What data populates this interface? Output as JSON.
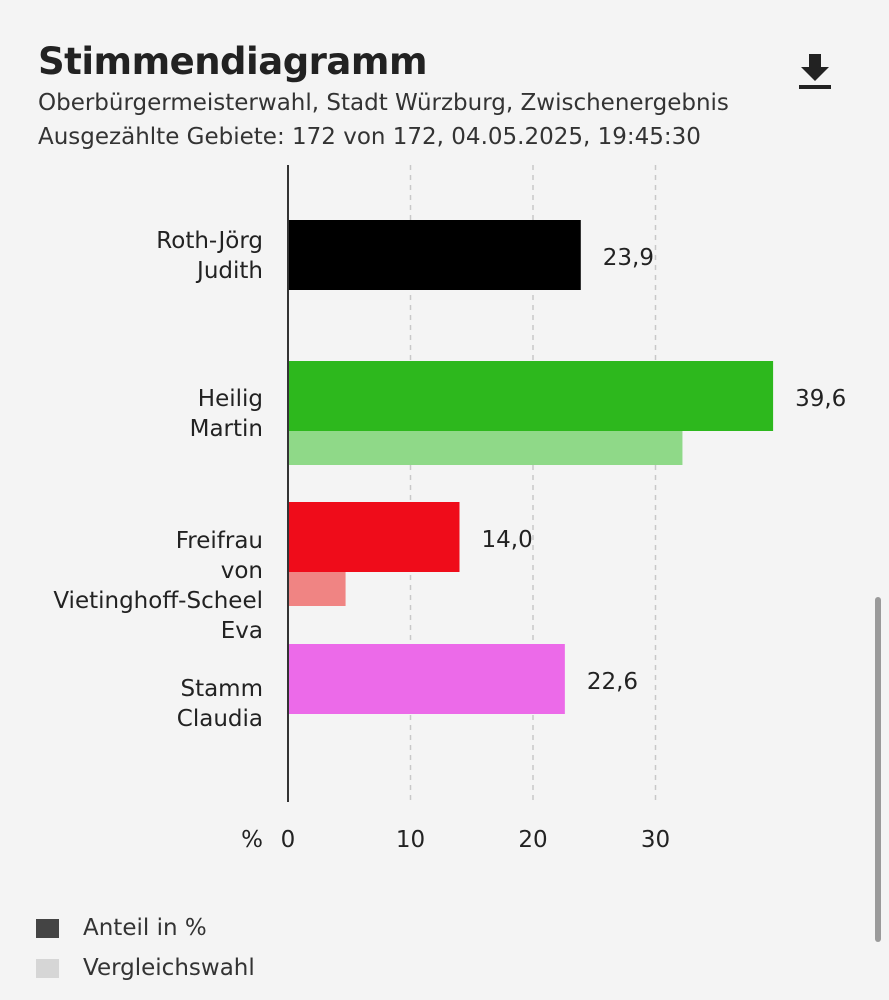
{
  "header": {
    "title": "Stimmendiagramm",
    "subtitle": "Oberbürgermeisterwahl, Stadt Würzburg, Zwischenergebnis",
    "info": "Ausgezählte Gebiete: 172 von 172, 04.05.2025, 19:45:30",
    "download_icon": "download-icon"
  },
  "chart_data": {
    "type": "bar",
    "orientation": "horizontal",
    "categories": [
      [
        "Roth-Jörg",
        "Judith"
      ],
      [
        "Heilig",
        "Martin"
      ],
      [
        "Freifrau",
        "von",
        "Vietinghoff-Scheel",
        "Eva"
      ],
      [
        "Stamm",
        "Claudia"
      ]
    ],
    "series": [
      {
        "name": "Anteil in %",
        "values": [
          23.9,
          39.6,
          14.0,
          22.6
        ],
        "labels": [
          "23,9",
          "39,6",
          "14,0",
          "22,6"
        ],
        "colors": [
          "#000000",
          "#2db81d",
          "#ef0c1a",
          "#ec6ae9"
        ]
      },
      {
        "name": "Vergleichswahl",
        "values": [
          null,
          32.2,
          4.7,
          null
        ],
        "colors": [
          "#8a8a8a",
          "#8fd988",
          "#f08483",
          "#f0a4ef"
        ]
      }
    ],
    "xunit": "%",
    "xticks": [
      "0",
      "10",
      "20",
      "30"
    ],
    "xtick_values": [
      0,
      10,
      20,
      30
    ],
    "xlim": [
      0,
      40
    ],
    "grid": true,
    "legend_placement": "bottom-left"
  },
  "legend": {
    "items": [
      {
        "label": "Anteil in %",
        "color": "#444444"
      },
      {
        "label": "Vergleichswahl",
        "color": "#d6d6d6"
      }
    ]
  }
}
